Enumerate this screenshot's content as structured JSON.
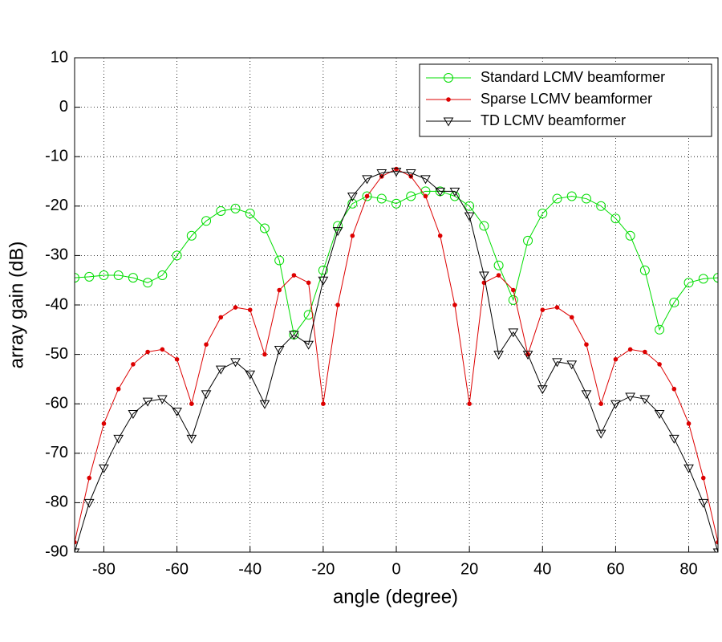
{
  "chart_data": {
    "type": "line",
    "x_label": "angle (degree)",
    "y_label": "array gain (dB)",
    "xlim": [
      -88,
      88
    ],
    "ylim": [
      -90,
      10
    ],
    "xticks": [
      -80,
      -60,
      -40,
      -20,
      0,
      20,
      40,
      60,
      80
    ],
    "yticks": [
      10,
      0,
      -10,
      -20,
      -30,
      -40,
      -50,
      -60,
      -70,
      -80,
      -90
    ],
    "grid": true,
    "legend_position": "upper right",
    "x": [
      -88,
      -84,
      -80,
      -76,
      -72,
      -68,
      -64,
      -60,
      -56,
      -52,
      -48,
      -44,
      -40,
      -36,
      -32,
      -28,
      -24,
      -20,
      -16,
      -12,
      -8,
      -4,
      0,
      4,
      8,
      12,
      16,
      20,
      24,
      28,
      32,
      36,
      40,
      44,
      48,
      52,
      56,
      60,
      64,
      68,
      72,
      76,
      80,
      84,
      88
    ],
    "series": [
      {
        "name": "Standard LCMV beamformer",
        "color": "#00dd00",
        "marker": "circle",
        "values": [
          -34.5,
          -34.3,
          -34,
          -34,
          -34.5,
          -35.5,
          -34,
          -30,
          -26,
          -23,
          -21,
          -20.5,
          -21.5,
          -24.5,
          -31,
          -46,
          -42,
          -33,
          -24,
          -19.5,
          -18,
          -18.5,
          -19.5,
          -18,
          -17,
          -17,
          -18,
          -20,
          -24,
          -32,
          -39,
          -27,
          -21.5,
          -18.5,
          -18,
          -18.5,
          -20,
          -22.5,
          -26,
          -33,
          -45,
          -39.5,
          -35.5,
          -34.7,
          -34.5
        ]
      },
      {
        "name": "Sparse LCMV beamformer",
        "color": "#dd0000",
        "marker": "dot",
        "values": [
          -88,
          -75,
          -64,
          -57,
          -52,
          -49.5,
          -49,
          -51,
          -60,
          -48,
          -42.5,
          -40.5,
          -41,
          -50,
          -37,
          -34,
          -35.5,
          -60,
          -40,
          -26,
          -18,
          -14,
          -12.5,
          -14,
          -18,
          -26,
          -40,
          -60,
          -35.5,
          -34,
          -37,
          -50,
          -41,
          -40.5,
          -42.5,
          -48,
          -60,
          -51,
          -49,
          -49.5,
          -52,
          -57,
          -64,
          -75,
          -88
        ]
      },
      {
        "name": "TD LCMV beamformer",
        "color": "#000000",
        "marker": "triangle",
        "values": [
          -90,
          -80,
          -73,
          -67,
          -62,
          -59.5,
          -59,
          -61.5,
          -67,
          -58,
          -53,
          -51.5,
          -54,
          -60,
          -49,
          -46,
          -48,
          -35,
          -25,
          -18,
          -14.5,
          -13.3,
          -13,
          -13.3,
          -14.5,
          -17,
          -17,
          -22,
          -34,
          -50,
          -45.5,
          -50,
          -57,
          -51.5,
          -52,
          -58,
          -66,
          -60,
          -58.5,
          -59,
          -62,
          -67,
          -73,
          -80,
          -90
        ]
      }
    ]
  }
}
